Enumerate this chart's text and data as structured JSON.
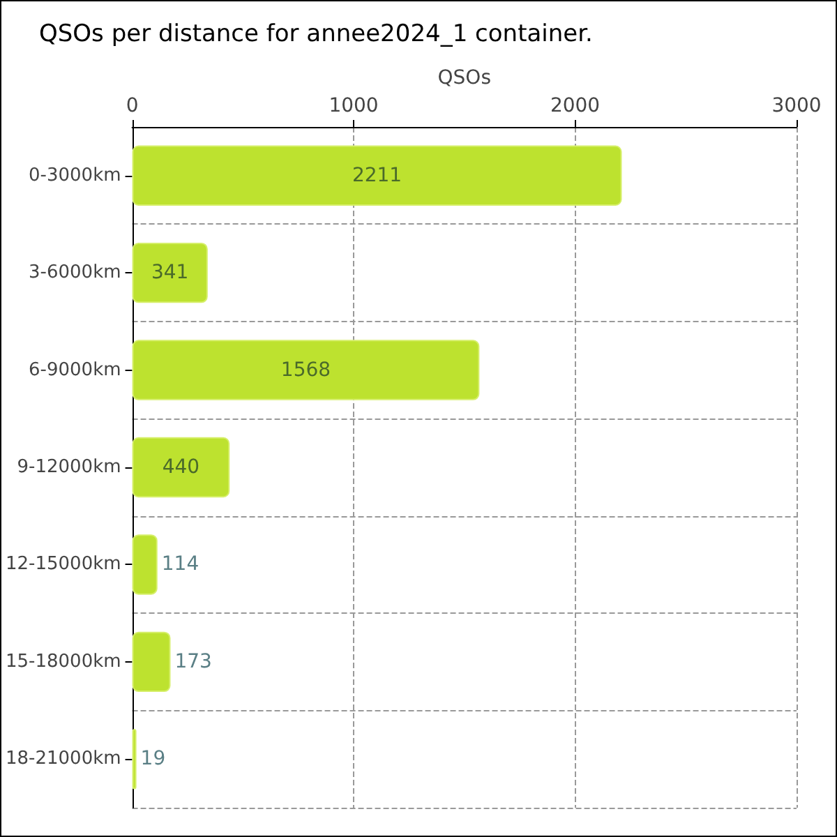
{
  "chart_data": {
    "type": "bar",
    "orientation": "horizontal",
    "title": "QSOs per distance for annee2024_1 container.",
    "xlabel": "QSOs",
    "categories": [
      "0-3000km",
      "3-6000km",
      "6-9000km",
      "9-12000km",
      "12-15000km",
      "15-18000km",
      "18-21000km"
    ],
    "values": [
      2211,
      341,
      1568,
      440,
      114,
      173,
      19
    ],
    "color": "#bde22f",
    "xlim": [
      0,
      3000
    ],
    "xticks": [
      0,
      1000,
      2000,
      3000
    ],
    "grid": true,
    "data_labels": true
  }
}
